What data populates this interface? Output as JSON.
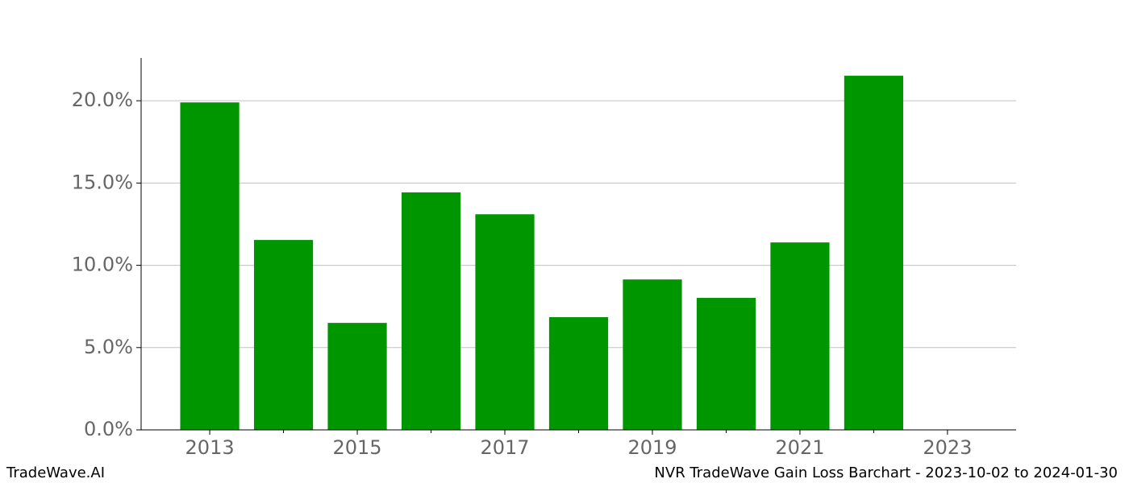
{
  "chart_data": {
    "type": "bar",
    "title": "NVR TradeWave Gain Loss Barchart - 2023-10-02 to 2024-01-30",
    "source": "TradeWave.AI",
    "x": [
      2013,
      2014,
      2015,
      2016,
      2017,
      2018,
      2019,
      2020,
      2021,
      2022
    ],
    "values": [
      19.9,
      11.54,
      6.5,
      14.43,
      13.1,
      6.85,
      9.14,
      8.02,
      11.39,
      21.52
    ],
    "color": "#009600",
    "xlim": [
      2012.07,
      2023.93
    ],
    "xticks": [
      2013,
      2015,
      2017,
      2019,
      2021,
      2023
    ],
    "ylim": [
      0,
      22.6
    ],
    "yticks": [
      {
        "value": 0,
        "label": "0.0%"
      },
      {
        "value": 5,
        "label": "5.0%"
      },
      {
        "value": 10,
        "label": "10.0%"
      },
      {
        "value": 15,
        "label": "15.0%"
      },
      {
        "value": 20,
        "label": "20.0%"
      }
    ],
    "grid": true
  }
}
